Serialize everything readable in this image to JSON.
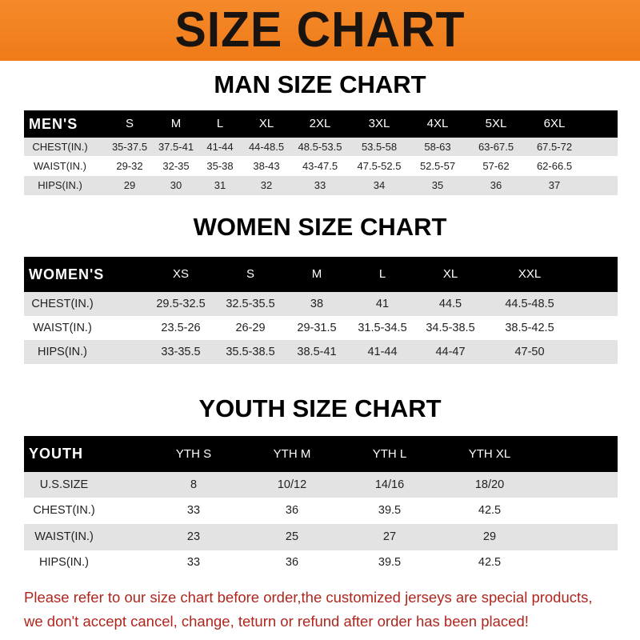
{
  "banner": {
    "title": "SIZE CHART",
    "color": "#f0801e"
  },
  "men": {
    "title": "MAN SIZE CHART",
    "header": [
      "MEN'S",
      "S",
      "M",
      "L",
      "XL",
      "2XL",
      "3XL",
      "4XL",
      "5XL",
      "6XL"
    ],
    "rows": [
      [
        "CHEST(IN.)",
        "35-37.5",
        "37.5-41",
        "41-44",
        "44-48.5",
        "48.5-53.5",
        "53.5-58",
        "58-63",
        "63-67.5",
        "67.5-72"
      ],
      [
        "WAIST(IN.)",
        "29-32",
        "32-35",
        "35-38",
        "38-43",
        "43-47.5",
        "47.5-52.5",
        "52.5-57",
        "57-62",
        "62-66.5"
      ],
      [
        "HIPS(IN.)",
        "29",
        "30",
        "31",
        "32",
        "33",
        "34",
        "35",
        "36",
        "37"
      ]
    ]
  },
  "women": {
    "title": "WOMEN SIZE CHART",
    "header": [
      "WOMEN'S",
      "XS",
      "S",
      "M",
      "L",
      "XL",
      "XXL"
    ],
    "rows": [
      [
        "CHEST(IN.)",
        "29.5-32.5",
        "32.5-35.5",
        "38",
        "41",
        "44.5",
        "44.5-48.5"
      ],
      [
        "WAIST(IN.)",
        "23.5-26",
        "26-29",
        "29-31.5",
        "31.5-34.5",
        "34.5-38.5",
        "38.5-42.5"
      ],
      [
        "HIPS(IN.)",
        "33-35.5",
        "35.5-38.5",
        "38.5-41",
        "41-44",
        "44-47",
        "47-50"
      ]
    ]
  },
  "youth": {
    "title": "YOUTH SIZE CHART",
    "header": [
      "YOUTH",
      "YTH S",
      "YTH M",
      "YTH L",
      "YTH XL"
    ],
    "rows": [
      [
        "U.S.SIZE",
        "8",
        "10/12",
        "14/16",
        "18/20"
      ],
      [
        "CHEST(IN.)",
        "33",
        "36",
        "39.5",
        "42.5"
      ],
      [
        "WAIST(IN.)",
        "23",
        "25",
        "27",
        "29"
      ],
      [
        "HIPS(IN.)",
        "33",
        "36",
        "39.5",
        "42.5"
      ]
    ]
  },
  "notice": {
    "line1": "Please refer to our size chart before order,the customized jerseys are special products,",
    "line2": "we don't accept cancel, change, teturn or refund after order has been placed!",
    "color": "#b0261e"
  }
}
